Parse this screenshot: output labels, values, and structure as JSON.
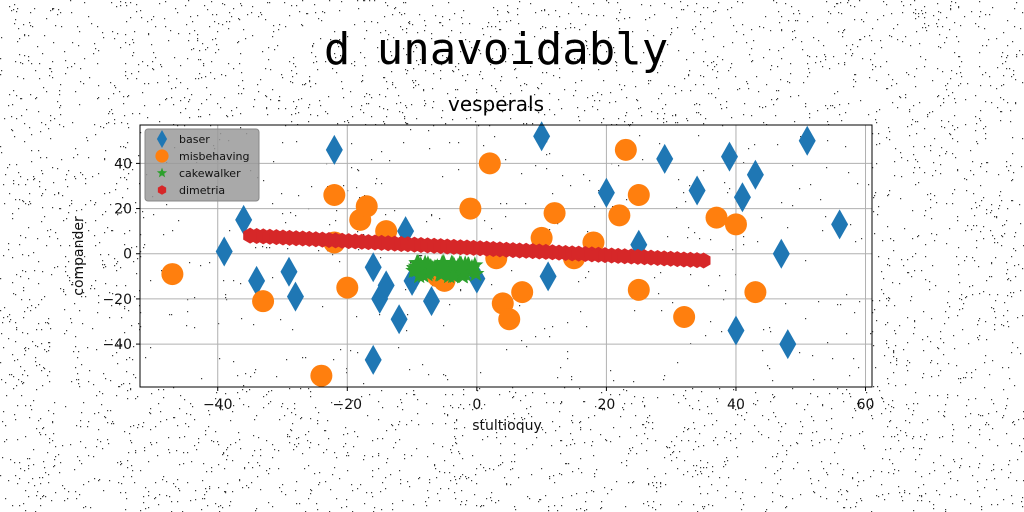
{
  "suptitle": "d unavoidably",
  "chart_data": {
    "type": "scatter",
    "title": "vesperals",
    "xlabel": "stultioquy",
    "ylabel": "compander",
    "xlim": [
      -52,
      61
    ],
    "ylim": [
      -59,
      57
    ],
    "xticks": [
      -40,
      -20,
      0,
      20,
      40,
      60
    ],
    "yticks": [
      -40,
      -20,
      0,
      20,
      40
    ],
    "grid": true,
    "legend_position": "top-left",
    "series": [
      {
        "name": "baser",
        "marker": "diamond",
        "color": "#1f77b4",
        "points": [
          [
            -39,
            1
          ],
          [
            -36,
            15
          ],
          [
            -34,
            -12
          ],
          [
            -29,
            -8
          ],
          [
            -28,
            -19
          ],
          [
            -22,
            46
          ],
          [
            -16,
            -6
          ],
          [
            -15,
            -20
          ],
          [
            -14,
            -14
          ],
          [
            -12,
            -29
          ],
          [
            -11,
            10
          ],
          [
            -10,
            -12
          ],
          [
            -7,
            -21
          ],
          [
            0,
            -11
          ],
          [
            10,
            52
          ],
          [
            11,
            -10
          ],
          [
            20,
            27
          ],
          [
            25,
            4
          ],
          [
            29,
            42
          ],
          [
            34,
            28
          ],
          [
            39,
            43
          ],
          [
            40,
            -34
          ],
          [
            41,
            25
          ],
          [
            43,
            35
          ],
          [
            47,
            0
          ],
          [
            48,
            -40
          ],
          [
            51,
            50
          ],
          [
            56,
            13
          ],
          [
            -16,
            -47
          ]
        ]
      },
      {
        "name": "misbehaving",
        "marker": "circle",
        "color": "#ff7f0e",
        "points": [
          [
            -47,
            -9
          ],
          [
            -33,
            -21
          ],
          [
            -24,
            -54
          ],
          [
            -22,
            26
          ],
          [
            -20,
            -15
          ],
          [
            -18,
            15
          ],
          [
            -17,
            21
          ],
          [
            -14,
            10
          ],
          [
            -6,
            -10
          ],
          [
            -5,
            -12
          ],
          [
            -1,
            20
          ],
          [
            2,
            40
          ],
          [
            3,
            -2
          ],
          [
            4,
            -22
          ],
          [
            5,
            -29
          ],
          [
            7,
            -17
          ],
          [
            10,
            7
          ],
          [
            12,
            18
          ],
          [
            15,
            -2
          ],
          [
            18,
            5
          ],
          [
            22,
            17
          ],
          [
            23,
            46
          ],
          [
            25,
            26
          ],
          [
            25,
            -16
          ],
          [
            32,
            -28
          ],
          [
            37,
            16
          ],
          [
            40,
            13
          ],
          [
            43,
            -17
          ],
          [
            -22,
            5
          ]
        ]
      },
      {
        "name": "cakewalker",
        "marker": "star",
        "color": "#2ca02c",
        "cluster": {
          "center": [
            -5,
            -7
          ],
          "spread": [
            5,
            3
          ],
          "count": 60
        }
      },
      {
        "name": "dimetria",
        "marker": "hexagon",
        "color": "#d62728",
        "line": {
          "from": [
            -35,
            8
          ],
          "to": [
            35,
            -3
          ],
          "count": 70
        }
      }
    ]
  }
}
